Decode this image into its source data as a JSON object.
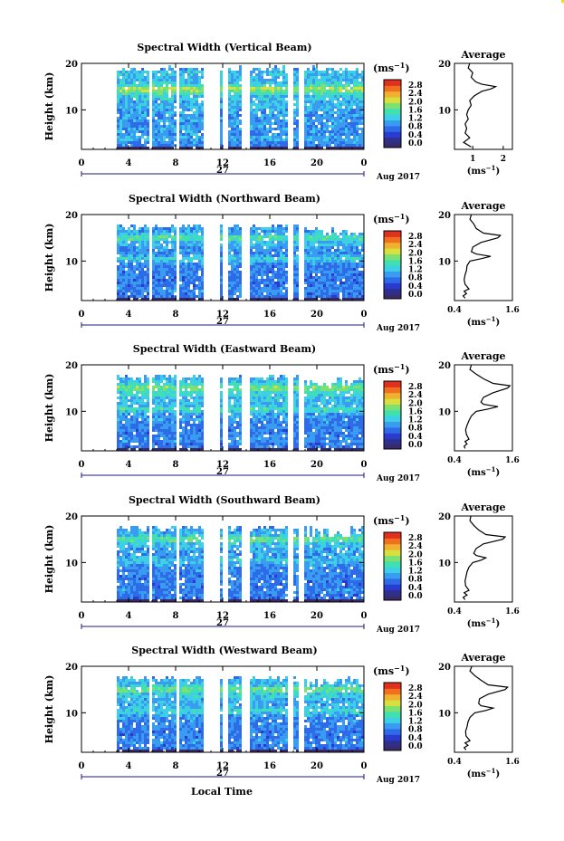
{
  "figure": {
    "bottom_label": "Local Time",
    "colorbar_ticks": [
      "0.0",
      "0.4",
      "0.8",
      "1.2",
      "1.6",
      "2.0",
      "2.4",
      "2.8"
    ],
    "colorbar_unit_base": "(ms",
    "colorbar_unit_exp": "−1",
    "colorbar_unit_close": ")",
    "colors": {
      "colormap": [
        "#2f2f8c",
        "#2a3cd0",
        "#2e6be8",
        "#3a9cf0",
        "#3ccfe6",
        "#40e0b0",
        "#7ee070",
        "#d8e040",
        "#f0b030",
        "#f07020",
        "#e03020"
      ],
      "low_band": "#3a2a6a"
    }
  },
  "chart_data": [
    {
      "type": "heatmap",
      "title": "Spectral Width (Vertical Beam)",
      "ylabel": "Height (km)",
      "y_ticks": [
        "10",
        "20"
      ],
      "x_ticks": [
        "0",
        "4",
        "8",
        "12",
        "16",
        "20",
        "0"
      ],
      "date_center": "27",
      "date_right": "Aug 2017",
      "ylim": [
        1.5,
        20
      ],
      "xlim": [
        0,
        24
      ],
      "avg_panel": {
        "title": "Average",
        "y_ticks": [
          "10",
          "20"
        ],
        "x_ticks": [
          "1",
          "2"
        ],
        "xlabel": "(ms",
        "xlabel_exp": "−1",
        "xlabel_close": ")",
        "xlim": [
          0.4,
          2.3
        ],
        "profile": [
          [
            2,
            0.95
          ],
          [
            3,
            0.7
          ],
          [
            4,
            0.9
          ],
          [
            5,
            0.75
          ],
          [
            6,
            0.8
          ],
          [
            7,
            0.75
          ],
          [
            8,
            0.85
          ],
          [
            9,
            0.8
          ],
          [
            10,
            0.85
          ],
          [
            11,
            0.95
          ],
          [
            12,
            0.9
          ],
          [
            13,
            1.05
          ],
          [
            14,
            1.3
          ],
          [
            14.5,
            1.6
          ],
          [
            15,
            1.75
          ],
          [
            15.5,
            1.3
          ],
          [
            16,
            1.1
          ],
          [
            17,
            0.95
          ],
          [
            18,
            1.0
          ],
          [
            19,
            0.85
          ],
          [
            20,
            0.9
          ]
        ]
      }
    },
    {
      "type": "heatmap",
      "title": "Spectral Width (Northward Beam)",
      "ylabel": "Height (km)",
      "y_ticks": [
        "10",
        "20"
      ],
      "x_ticks": [
        "0",
        "4",
        "8",
        "12",
        "16",
        "20",
        "0"
      ],
      "date_center": "27",
      "date_right": "Aug 2017",
      "ylim": [
        1.5,
        20
      ],
      "xlim": [
        0,
        24
      ],
      "avg_panel": {
        "title": "Average",
        "y_ticks": [
          "10",
          "20"
        ],
        "x_ticks": [
          "0.4",
          "1.6"
        ],
        "xlabel": "(ms",
        "xlabel_exp": "−1",
        "xlabel_close": ")",
        "xlim": [
          0.4,
          1.6
        ],
        "profile": [
          [
            2,
            0.62
          ],
          [
            2.5,
            0.58
          ],
          [
            3,
            0.65
          ],
          [
            3.5,
            0.6
          ],
          [
            4,
            0.7
          ],
          [
            5,
            0.62
          ],
          [
            6,
            0.6
          ],
          [
            7,
            0.62
          ],
          [
            8,
            0.65
          ],
          [
            9,
            0.66
          ],
          [
            10,
            0.72
          ],
          [
            10.5,
            0.95
          ],
          [
            11,
            1.15
          ],
          [
            11.5,
            0.85
          ],
          [
            12,
            0.75
          ],
          [
            13,
            0.78
          ],
          [
            14,
            0.95
          ],
          [
            15,
            1.3
          ],
          [
            15.5,
            1.35
          ],
          [
            16,
            1.0
          ],
          [
            17,
            0.85
          ],
          [
            18,
            0.8
          ],
          [
            19,
            0.72
          ],
          [
            20,
            0.75
          ]
        ]
      }
    },
    {
      "type": "heatmap",
      "title": "Spectral Width (Eastward Beam)",
      "ylabel": "Height (km)",
      "y_ticks": [
        "10",
        "20"
      ],
      "x_ticks": [
        "0",
        "4",
        "8",
        "12",
        "16",
        "20",
        "0"
      ],
      "date_center": "27",
      "date_right": "Aug 2017",
      "ylim": [
        1.5,
        20
      ],
      "xlim": [
        0,
        24
      ],
      "avg_panel": {
        "title": "Average",
        "y_ticks": [
          "10",
          "20"
        ],
        "x_ticks": [
          "0.4",
          "1.6"
        ],
        "xlabel": "(ms",
        "xlabel_exp": "−1",
        "xlabel_close": ")",
        "xlim": [
          0.4,
          1.6
        ],
        "profile": [
          [
            2,
            0.62
          ],
          [
            2.5,
            0.6
          ],
          [
            3,
            0.66
          ],
          [
            3.5,
            0.62
          ],
          [
            4,
            0.7
          ],
          [
            5,
            0.65
          ],
          [
            6,
            0.63
          ],
          [
            7,
            0.66
          ],
          [
            8,
            0.7
          ],
          [
            9,
            0.75
          ],
          [
            10,
            0.85
          ],
          [
            10.5,
            1.1
          ],
          [
            11,
            1.3
          ],
          [
            11.5,
            1.0
          ],
          [
            12,
            0.95
          ],
          [
            13,
            1.0
          ],
          [
            14,
            1.2
          ],
          [
            15,
            1.5
          ],
          [
            15.5,
            1.55
          ],
          [
            16,
            1.2
          ],
          [
            17,
            1.0
          ],
          [
            18,
            0.85
          ],
          [
            19,
            0.72
          ],
          [
            20,
            0.75
          ]
        ]
      }
    },
    {
      "type": "heatmap",
      "title": "Spectral Width (Southward Beam)",
      "ylabel": "Height (km)",
      "y_ticks": [
        "10",
        "20"
      ],
      "x_ticks": [
        "0",
        "4",
        "8",
        "12",
        "16",
        "20",
        "0"
      ],
      "date_center": "27",
      "date_right": "Aug 2017",
      "ylim": [
        1.5,
        20
      ],
      "xlim": [
        0,
        24
      ],
      "avg_panel": {
        "title": "Average",
        "y_ticks": [
          "10",
          "20"
        ],
        "x_ticks": [
          "0.4",
          "1.6"
        ],
        "xlabel": "(ms",
        "xlabel_exp": "−1",
        "xlabel_close": ")",
        "xlim": [
          0.4,
          1.6
        ],
        "profile": [
          [
            2,
            0.62
          ],
          [
            2.5,
            0.58
          ],
          [
            3,
            0.66
          ],
          [
            3.5,
            0.6
          ],
          [
            4,
            0.7
          ],
          [
            5,
            0.63
          ],
          [
            6,
            0.62
          ],
          [
            7,
            0.64
          ],
          [
            8,
            0.66
          ],
          [
            9,
            0.7
          ],
          [
            10,
            0.78
          ],
          [
            10.5,
            0.95
          ],
          [
            11,
            1.05
          ],
          [
            11.5,
            0.85
          ],
          [
            12,
            0.8
          ],
          [
            13,
            0.85
          ],
          [
            14,
            1.0
          ],
          [
            15,
            1.4
          ],
          [
            15.5,
            1.45
          ],
          [
            16,
            1.05
          ],
          [
            17,
            0.9
          ],
          [
            18,
            0.8
          ],
          [
            19,
            0.72
          ],
          [
            20,
            0.74
          ]
        ]
      }
    },
    {
      "type": "heatmap",
      "title": "Spectral Width (Westward Beam)",
      "ylabel": "Height (km)",
      "y_ticks": [
        "10",
        "20"
      ],
      "x_ticks": [
        "0",
        "4",
        "8",
        "12",
        "16",
        "20",
        "0"
      ],
      "date_center": "27",
      "date_right": "Aug 2017",
      "ylim": [
        1.5,
        20
      ],
      "xlim": [
        0,
        24
      ],
      "avg_panel": {
        "title": "Average",
        "y_ticks": [
          "10",
          "20"
        ],
        "x_ticks": [
          "0.4",
          "1.6"
        ],
        "xlabel": "(ms",
        "xlabel_exp": "−1",
        "xlabel_close": ")",
        "xlim": [
          0.4,
          1.6
        ],
        "profile": [
          [
            2,
            0.64
          ],
          [
            2.5,
            0.6
          ],
          [
            3,
            0.68
          ],
          [
            3.5,
            0.62
          ],
          [
            4,
            0.72
          ],
          [
            5,
            0.64
          ],
          [
            6,
            0.63
          ],
          [
            7,
            0.66
          ],
          [
            8,
            0.68
          ],
          [
            9,
            0.72
          ],
          [
            10,
            0.82
          ],
          [
            10.5,
            1.05
          ],
          [
            11,
            1.2
          ],
          [
            11.5,
            0.95
          ],
          [
            12,
            0.9
          ],
          [
            13,
            0.92
          ],
          [
            14,
            1.1
          ],
          [
            15,
            1.45
          ],
          [
            15.5,
            1.5
          ],
          [
            16,
            1.1
          ],
          [
            17,
            0.95
          ],
          [
            18,
            0.82
          ],
          [
            19,
            0.72
          ],
          [
            20,
            0.76
          ]
        ]
      }
    }
  ]
}
